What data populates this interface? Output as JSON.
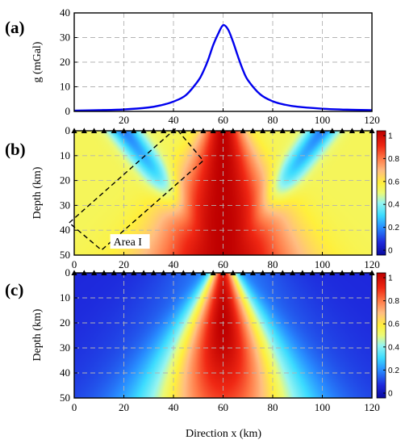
{
  "chart_data": [
    {
      "type": "line",
      "panel_label": "(a)",
      "ylabel": "g (mGal)",
      "xlim": [
        0,
        120
      ],
      "ylim": [
        0,
        40
      ],
      "xticks": [
        "20",
        "40",
        "60",
        "80",
        "100",
        "120"
      ],
      "yticks": [
        "0",
        "10",
        "20",
        "30",
        "40"
      ],
      "grid": true,
      "series": [
        {
          "color": "#0000ee",
          "x": [
            0,
            10,
            20,
            30,
            35,
            40,
            45,
            50,
            52,
            54,
            56,
            58,
            60,
            62,
            64,
            66,
            68,
            70,
            75,
            80,
            85,
            90,
            100,
            110,
            120
          ],
          "y": [
            0.3,
            0.5,
            0.8,
            1.6,
            2.5,
            4.0,
            6.6,
            12.5,
            16.2,
            21.0,
            26.9,
            31.5,
            35.0,
            33.3,
            28.3,
            22.3,
            16.8,
            12.7,
            6.9,
            4.1,
            2.7,
            1.9,
            1.1,
            0.7,
            0.5
          ]
        }
      ]
    },
    {
      "type": "heatmap",
      "panel_label": "(b)",
      "ylabel": "Depth (km)",
      "xlim": [
        0,
        120
      ],
      "ylim": [
        50,
        0
      ],
      "yticks": [
        "0",
        "10",
        "20",
        "30",
        "40",
        "50"
      ],
      "xticks": [
        "0",
        "20",
        "40",
        "60",
        "80",
        "100",
        "120"
      ],
      "colorbar": {
        "range": [
          0,
          1
        ],
        "ticks": [
          "0",
          "0.2",
          "0.4",
          "0.6",
          "0.8",
          "1"
        ]
      },
      "stations_x": [
        0,
        4,
        8,
        12,
        16,
        20,
        24,
        28,
        32,
        36,
        40,
        44,
        48,
        52,
        56,
        60,
        64,
        68,
        72,
        76,
        80,
        84,
        88,
        92,
        96,
        100,
        104,
        108,
        112,
        116,
        120
      ],
      "annotation": {
        "text": "Area I",
        "box_corners": [
          [
            -2,
            37
          ],
          [
            41,
            -1
          ],
          [
            52,
            12
          ],
          [
            11,
            48
          ]
        ]
      },
      "description_values": "peak 1 at x=60 km near surface; low-value (blue) diagonal lobes from x=20 and x=100 at surface"
    },
    {
      "type": "heatmap",
      "panel_label": "(c)",
      "ylabel": "Depth (km)",
      "xlabel": "Direction x (km)",
      "xlim": [
        0,
        120
      ],
      "ylim": [
        50,
        0
      ],
      "yticks": [
        "0",
        "10",
        "20",
        "30",
        "40",
        "50"
      ],
      "xticks": [
        "0",
        "20",
        "40",
        "60",
        "80",
        "100",
        "120"
      ],
      "colorbar": {
        "range": [
          0,
          1
        ],
        "ticks": [
          "0",
          "0.2",
          "0.4",
          "0.6",
          "0.8",
          "1"
        ]
      },
      "stations_x": [
        0,
        4,
        8,
        12,
        16,
        20,
        24,
        28,
        32,
        36,
        40,
        44,
        48,
        52,
        56,
        60,
        64,
        68,
        72,
        76,
        80,
        84,
        88,
        92,
        96,
        100,
        104,
        108,
        112,
        116,
        120
      ]
    }
  ]
}
